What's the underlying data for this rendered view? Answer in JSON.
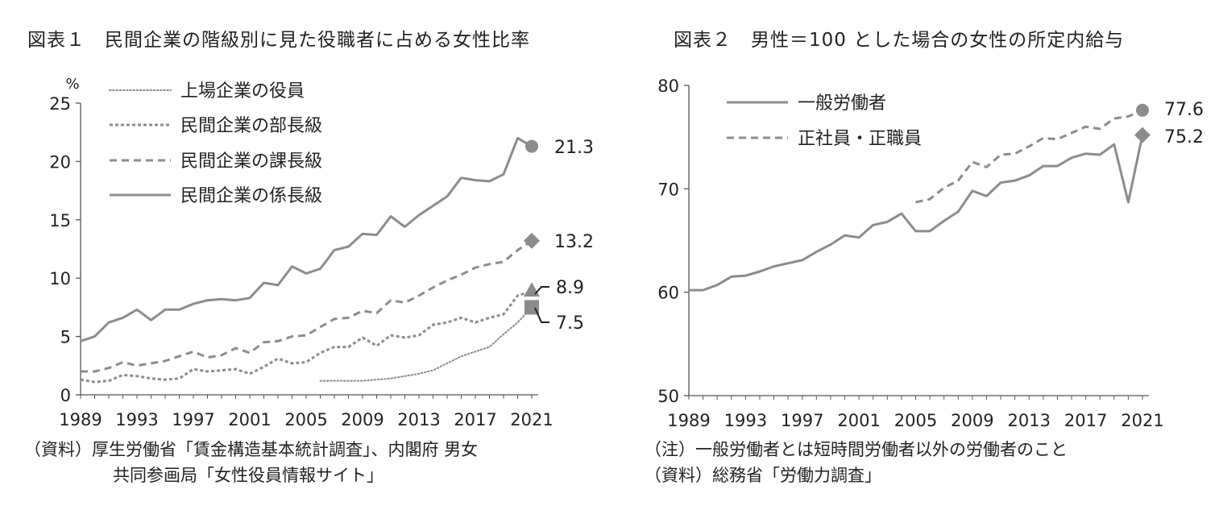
{
  "chart_data": [
    {
      "type": "line",
      "title": "図表１　民間企業の階級別に見た役職者に占める女性比率",
      "ylabel": "%",
      "ylim": [
        0,
        25
      ],
      "yticks": [
        0,
        5,
        10,
        15,
        20,
        25
      ],
      "xlim": [
        1989,
        2021
      ],
      "xticks": [
        1989,
        1993,
        1997,
        2001,
        2005,
        2009,
        2013,
        2017,
        2021
      ],
      "grid": false,
      "legend_position": "top-left",
      "series": [
        {
          "name": "上場企業の役員",
          "style": "dotted",
          "x": [
            2006,
            2007,
            2008,
            2009,
            2010,
            2011,
            2012,
            2013,
            2014,
            2015,
            2016,
            2017,
            2018,
            2019,
            2020,
            2021
          ],
          "values": [
            1.2,
            1.2,
            1.2,
            1.2,
            1.3,
            1.4,
            1.6,
            1.8,
            2.1,
            2.7,
            3.3,
            3.7,
            4.1,
            5.2,
            6.2,
            7.5
          ],
          "end_value": 7.5,
          "end_label": "7.5",
          "marker": "square"
        },
        {
          "name": "民間企業の部長級",
          "style": "short-dash",
          "x": [
            1989,
            1990,
            1991,
            1992,
            1993,
            1994,
            1995,
            1996,
            1997,
            1998,
            1999,
            2000,
            2001,
            2002,
            2003,
            2004,
            2005,
            2006,
            2007,
            2008,
            2009,
            2010,
            2011,
            2012,
            2013,
            2014,
            2015,
            2016,
            2017,
            2018,
            2019,
            2020,
            2021
          ],
          "values": [
            1.3,
            1.1,
            1.2,
            1.7,
            1.6,
            1.4,
            1.3,
            1.4,
            2.2,
            2.0,
            2.1,
            2.2,
            1.8,
            2.4,
            3.1,
            2.7,
            2.8,
            3.6,
            4.1,
            4.1,
            4.9,
            4.2,
            5.1,
            4.9,
            5.1,
            6.0,
            6.2,
            6.6,
            6.2,
            6.6,
            6.9,
            8.5,
            8.9
          ],
          "end_value": 8.9,
          "end_label": "8.9",
          "marker": "triangle"
        },
        {
          "name": "民間企業の課長級",
          "style": "dash",
          "x": [
            1989,
            1990,
            1991,
            1992,
            1993,
            1994,
            1995,
            1996,
            1997,
            1998,
            1999,
            2000,
            2001,
            2002,
            2003,
            2004,
            2005,
            2006,
            2007,
            2008,
            2009,
            2010,
            2011,
            2012,
            2013,
            2014,
            2015,
            2016,
            2017,
            2018,
            2019,
            2020,
            2021
          ],
          "values": [
            2.0,
            2.0,
            2.3,
            2.8,
            2.5,
            2.7,
            2.9,
            3.3,
            3.7,
            3.2,
            3.4,
            4.0,
            3.6,
            4.5,
            4.6,
            5.0,
            5.1,
            5.8,
            6.5,
            6.6,
            7.2,
            7.0,
            8.1,
            7.9,
            8.5,
            9.2,
            9.8,
            10.3,
            10.9,
            11.2,
            11.4,
            12.4,
            13.2
          ],
          "end_value": 13.2,
          "end_label": "13.2",
          "marker": "diamond"
        },
        {
          "name": "民間企業の係長級",
          "style": "solid",
          "x": [
            1989,
            1990,
            1991,
            1992,
            1993,
            1994,
            1995,
            1996,
            1997,
            1998,
            1999,
            2000,
            2001,
            2002,
            2003,
            2004,
            2005,
            2006,
            2007,
            2008,
            2009,
            2010,
            2011,
            2012,
            2013,
            2014,
            2015,
            2016,
            2017,
            2018,
            2019,
            2020,
            2021
          ],
          "values": [
            4.6,
            5.0,
            6.2,
            6.6,
            7.3,
            6.4,
            7.3,
            7.3,
            7.8,
            8.1,
            8.2,
            8.1,
            8.3,
            9.6,
            9.4,
            11.0,
            10.4,
            10.8,
            12.4,
            12.7,
            13.8,
            13.7,
            15.3,
            14.4,
            15.4,
            16.2,
            17.0,
            18.6,
            18.4,
            18.3,
            18.9,
            22.0,
            21.3
          ],
          "end_value": 21.3,
          "end_label": "21.3",
          "marker": "circle"
        }
      ],
      "source_note": [
        "（資料）厚生労働省「賃金構造基本統計調査」、内閣府 男女",
        "共同参画局「女性役員情報サイト」"
      ]
    },
    {
      "type": "line",
      "title": "図表２　男性＝100 とした場合の女性の所定内給与",
      "ylim": [
        50,
        80
      ],
      "yticks": [
        50,
        60,
        70,
        80
      ],
      "xlim": [
        1989,
        2021
      ],
      "xticks": [
        1989,
        1993,
        1997,
        2001,
        2005,
        2009,
        2013,
        2017,
        2021
      ],
      "grid": false,
      "legend_position": "top-left",
      "series": [
        {
          "name": "一般労働者",
          "style": "solid",
          "x": [
            1989,
            1990,
            1991,
            1992,
            1993,
            1994,
            1995,
            1996,
            1997,
            1998,
            1999,
            2000,
            2001,
            2002,
            2003,
            2004,
            2005,
            2006,
            2007,
            2008,
            2009,
            2010,
            2011,
            2012,
            2013,
            2014,
            2015,
            2016,
            2017,
            2018,
            2019,
            2020,
            2021
          ],
          "values": [
            60.2,
            60.2,
            60.7,
            61.5,
            61.6,
            62.0,
            62.5,
            62.8,
            63.1,
            63.9,
            64.6,
            65.5,
            65.3,
            66.5,
            66.8,
            67.6,
            65.9,
            65.9,
            66.9,
            67.8,
            69.8,
            69.3,
            70.6,
            70.8,
            71.3,
            72.2,
            72.2,
            73.0,
            73.4,
            73.3,
            74.3,
            68.7,
            75.2
          ],
          "end_value": 75.2,
          "end_label": "75.2",
          "marker": "diamond"
        },
        {
          "name": "正社員・正職員",
          "style": "dash",
          "x": [
            2005,
            2006,
            2007,
            2008,
            2009,
            2010,
            2011,
            2012,
            2013,
            2014,
            2015,
            2016,
            2017,
            2018,
            2019,
            2020,
            2021
          ],
          "values": [
            68.7,
            69.0,
            70.1,
            70.8,
            72.6,
            72.1,
            73.3,
            73.4,
            74.1,
            74.9,
            74.8,
            75.4,
            76.0,
            75.8,
            76.8,
            77.0,
            77.6
          ],
          "end_value": 77.6,
          "end_label": "77.6",
          "marker": "circle"
        }
      ],
      "source_note": [
        "（注）一般労働者とは短時間労働者以外の労働者のこと",
        "（資料）総務省「労働力調査」"
      ]
    }
  ]
}
